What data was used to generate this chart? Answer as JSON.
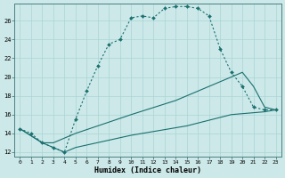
{
  "xlabel": "Humidex (Indice chaleur)",
  "background_color": "#cce8e8",
  "line_color": "#1a7070",
  "grid_color": "#aad4d4",
  "xlim": [
    -0.5,
    23.5
  ],
  "ylim": [
    11.5,
    27.8
  ],
  "xticks": [
    0,
    1,
    2,
    3,
    4,
    5,
    6,
    7,
    8,
    9,
    10,
    11,
    12,
    13,
    14,
    15,
    16,
    17,
    18,
    19,
    20,
    21,
    22,
    23
  ],
  "yticks": [
    12,
    14,
    16,
    18,
    20,
    22,
    24,
    26
  ],
  "line1_x": [
    0,
    1,
    2,
    3,
    4,
    5,
    6,
    7,
    8,
    9,
    10,
    11,
    12,
    13,
    14,
    15,
    16,
    17,
    18,
    19,
    20,
    21,
    22,
    23
  ],
  "line1_y": [
    14.5,
    14.0,
    13.0,
    12.5,
    12.0,
    15.5,
    18.5,
    21.2,
    23.5,
    24.0,
    26.3,
    26.5,
    26.3,
    27.3,
    27.5,
    27.5,
    27.3,
    26.5,
    23.0,
    20.5,
    19.0,
    16.8,
    16.5,
    16.5
  ],
  "line2_x": [
    0,
    2,
    3,
    4,
    5,
    10,
    14,
    17,
    19,
    20,
    21,
    22,
    23
  ],
  "line2_y": [
    14.5,
    13.0,
    13.0,
    13.5,
    14.0,
    16.0,
    17.5,
    19.0,
    20.0,
    20.5,
    19.0,
    16.8,
    16.5
  ],
  "line3_x": [
    0,
    2,
    3,
    4,
    5,
    10,
    15,
    19,
    22,
    23
  ],
  "line3_y": [
    14.5,
    13.0,
    12.5,
    12.0,
    12.5,
    13.8,
    14.8,
    16.0,
    16.3,
    16.5
  ]
}
